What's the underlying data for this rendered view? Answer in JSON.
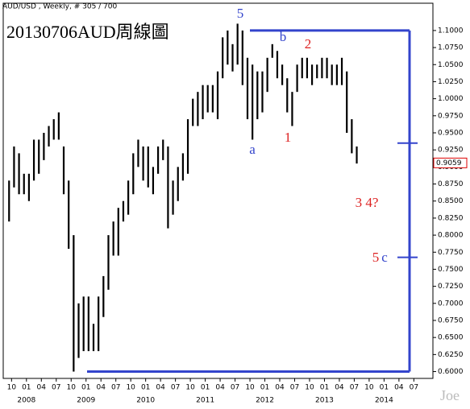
{
  "chart_data": {
    "type": "range-bar",
    "header": "AUD/USD , Weekly, # 305 / 700",
    "title": "20130706AUD周線圖",
    "watermark": "Joe",
    "color": "#000000",
    "x": [
      "2007-09",
      "2007-10",
      "2007-11",
      "2007-12",
      "2008-01",
      "2008-02",
      "2008-03",
      "2008-04",
      "2008-05",
      "2008-06",
      "2008-07",
      "2008-08",
      "2008-09",
      "2008-10",
      "2008-11",
      "2008-12",
      "2009-01",
      "2009-02",
      "2009-03",
      "2009-04",
      "2009-05",
      "2009-06",
      "2009-07",
      "2009-08",
      "2009-09",
      "2009-10",
      "2009-11",
      "2009-12",
      "2010-01",
      "2010-02",
      "2010-03",
      "2010-04",
      "2010-05",
      "2010-06",
      "2010-07",
      "2010-08",
      "2010-09",
      "2010-10",
      "2010-11",
      "2010-12",
      "2011-01",
      "2011-02",
      "2011-03",
      "2011-04",
      "2011-05",
      "2011-06",
      "2011-07",
      "2011-08",
      "2011-09",
      "2011-10",
      "2011-11",
      "2011-12",
      "2012-01",
      "2012-02",
      "2012-03",
      "2012-04",
      "2012-05",
      "2012-06",
      "2012-07",
      "2012-08",
      "2012-09",
      "2012-10",
      "2012-11",
      "2012-12",
      "2013-01",
      "2013-02",
      "2013-03",
      "2013-04",
      "2013-05",
      "2013-06",
      "2013-07"
    ],
    "low": [
      0.82,
      0.87,
      0.86,
      0.86,
      0.85,
      0.88,
      0.89,
      0.91,
      0.93,
      0.94,
      0.94,
      0.86,
      0.78,
      0.6,
      0.62,
      0.63,
      0.63,
      0.63,
      0.63,
      0.68,
      0.72,
      0.77,
      0.77,
      0.82,
      0.83,
      0.86,
      0.9,
      0.88,
      0.87,
      0.86,
      0.89,
      0.91,
      0.81,
      0.83,
      0.85,
      0.88,
      0.89,
      0.96,
      0.96,
      0.97,
      0.98,
      0.98,
      0.97,
      1.03,
      1.05,
      1.04,
      1.05,
      1.02,
      0.97,
      0.94,
      0.97,
      0.98,
      1.01,
      1.06,
      1.03,
      1.02,
      0.98,
      0.96,
      1.01,
      1.03,
      1.03,
      1.02,
      1.03,
      1.03,
      1.03,
      1.02,
      1.02,
      1.02,
      0.95,
      0.92,
      0.905
    ],
    "high": [
      0.88,
      0.93,
      0.92,
      0.89,
      0.89,
      0.94,
      0.94,
      0.95,
      0.96,
      0.97,
      0.98,
      0.93,
      0.88,
      0.8,
      0.7,
      0.71,
      0.71,
      0.67,
      0.71,
      0.74,
      0.8,
      0.82,
      0.84,
      0.85,
      0.88,
      0.92,
      0.94,
      0.93,
      0.93,
      0.9,
      0.93,
      0.94,
      0.93,
      0.88,
      0.9,
      0.92,
      0.97,
      1.0,
      1.01,
      1.02,
      1.02,
      1.02,
      1.04,
      1.09,
      1.1,
      1.08,
      1.11,
      1.1,
      1.06,
      1.05,
      1.04,
      1.04,
      1.06,
      1.08,
      1.07,
      1.05,
      1.03,
      1.01,
      1.05,
      1.06,
      1.06,
      1.05,
      1.05,
      1.06,
      1.06,
      1.05,
      1.05,
      1.06,
      1.04,
      0.97,
      0.93
    ],
    "xlim": [
      "2007-08",
      "2014-11"
    ],
    "xticks": [
      {
        "value": "2007-10",
        "label": "10"
      },
      {
        "value": "2008-01",
        "label": "01"
      },
      {
        "value": "2008-04",
        "label": "04"
      },
      {
        "value": "2008-07",
        "label": "07"
      },
      {
        "value": "2008-10",
        "label": "10"
      },
      {
        "value": "2009-01",
        "label": "01"
      },
      {
        "value": "2009-04",
        "label": "04"
      },
      {
        "value": "2009-07",
        "label": "07"
      },
      {
        "value": "2009-10",
        "label": "10"
      },
      {
        "value": "2010-01",
        "label": "01"
      },
      {
        "value": "2010-04",
        "label": "04"
      },
      {
        "value": "2010-07",
        "label": "07"
      },
      {
        "value": "2010-10",
        "label": "10"
      },
      {
        "value": "2011-01",
        "label": "01"
      },
      {
        "value": "2011-04",
        "label": "04"
      },
      {
        "value": "2011-07",
        "label": "07"
      },
      {
        "value": "2011-10",
        "label": "10"
      },
      {
        "value": "2012-01",
        "label": "01"
      },
      {
        "value": "2012-04",
        "label": "04"
      },
      {
        "value": "2012-07",
        "label": "07"
      },
      {
        "value": "2012-10",
        "label": "10"
      },
      {
        "value": "2013-01",
        "label": "01"
      },
      {
        "value": "2013-04",
        "label": "04"
      },
      {
        "value": "2013-07",
        "label": "07"
      },
      {
        "value": "2013-10",
        "label": "10"
      },
      {
        "value": "2014-01",
        "label": "01"
      },
      {
        "value": "2014-04",
        "label": "04"
      },
      {
        "value": "2014-07",
        "label": "07"
      }
    ],
    "year_ticks": [
      {
        "value": "2008-01",
        "label": "2008"
      },
      {
        "value": "2009-01",
        "label": "2009"
      },
      {
        "value": "2010-01",
        "label": "2010"
      },
      {
        "value": "2011-01",
        "label": "2011"
      },
      {
        "value": "2012-01",
        "label": "2012"
      },
      {
        "value": "2013-01",
        "label": "2013"
      },
      {
        "value": "2014-01",
        "label": "2014"
      }
    ],
    "ylim": [
      0.59,
      1.14
    ],
    "yticks": [
      {
        "value": 0.6,
        "label": "0.6000"
      },
      {
        "value": 0.625,
        "label": "0.6250"
      },
      {
        "value": 0.65,
        "label": "0.6500"
      },
      {
        "value": 0.675,
        "label": "0.6750"
      },
      {
        "value": 0.7,
        "label": "0.7000"
      },
      {
        "value": 0.725,
        "label": "0.7250"
      },
      {
        "value": 0.75,
        "label": "0.7500"
      },
      {
        "value": 0.775,
        "label": "0.7750"
      },
      {
        "value": 0.8,
        "label": "0.8000"
      },
      {
        "value": 0.825,
        "label": "0.8250"
      },
      {
        "value": 0.85,
        "label": "0.8500"
      },
      {
        "value": 0.875,
        "label": "0.8750"
      },
      {
        "value": 0.9,
        "label": "0.9000"
      },
      {
        "value": 0.925,
        "label": "0.9250"
      },
      {
        "value": 0.95,
        "label": "0.9500"
      },
      {
        "value": 0.975,
        "label": "0.9750"
      },
      {
        "value": 1.0,
        "label": "1.0000"
      },
      {
        "value": 1.025,
        "label": "1.0250"
      },
      {
        "value": 1.05,
        "label": "1.0500"
      },
      {
        "value": 1.075,
        "label": "1.0750"
      },
      {
        "value": 1.1,
        "label": "1.1000"
      }
    ],
    "last_price": 0.9059,
    "measure_color": "#3344cc",
    "measure_top": 1.1,
    "measure_bottom": 0.6,
    "measure_marks": [
      0.935,
      0.7675
    ],
    "annotations": [
      {
        "text": "5",
        "color": "#3344cc"
      },
      {
        "text": "b",
        "color": "#3344cc"
      },
      {
        "text": "2",
        "color": "#dd2222"
      },
      {
        "text": "a",
        "color": "#3344cc"
      },
      {
        "text": "1",
        "color": "#dd2222"
      },
      {
        "text": "3 4?",
        "color": "#dd2222"
      },
      {
        "text": "5",
        "color": "#dd2222"
      },
      {
        "text": "c",
        "color": "#3344cc"
      }
    ]
  }
}
